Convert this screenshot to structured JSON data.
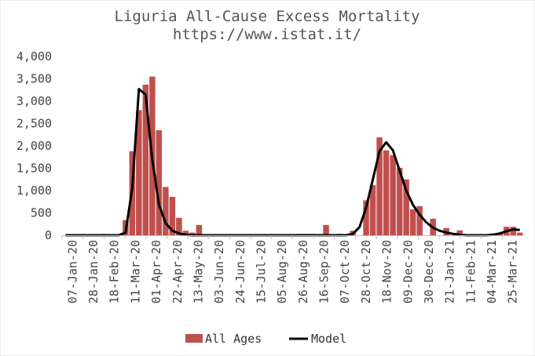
{
  "chart_data": {
    "type": "bar",
    "title": "Liguria All-Cause Excess Mortality",
    "subtitle": "https://www.istat.it/",
    "xlabel": "",
    "ylabel": "",
    "ylim": [
      0,
      4000
    ],
    "y_ticks": [
      "0",
      "500",
      "1,000",
      "1,500",
      "2,000",
      "2,500",
      "3,000",
      "3,500",
      "4,000"
    ],
    "x_tick_labels": [
      "07-Jan-20",
      "28-Jan-20",
      "18-Feb-20",
      "11-Mar-20",
      "01-Apr-20",
      "22-Apr-20",
      "13-May-20",
      "03-Jun-20",
      "24-Jun-20",
      "15-Jul-20",
      "05-Aug-20",
      "26-Aug-20",
      "16-Sep-20",
      "07-Oct-20",
      "28-Oct-20",
      "18-Nov-20",
      "09-Dec-20",
      "30-Dec-20",
      "21-Jan-21",
      "11-Feb-21",
      "04-Mar-21",
      "25-Mar-21"
    ],
    "series": [
      {
        "name": "All Ages",
        "type": "bar",
        "color": "#c0504d",
        "values": [
          0,
          0,
          0,
          15,
          15,
          15,
          15,
          0,
          0,
          340,
          1880,
          2800,
          3370,
          3550,
          2350,
          1080,
          860,
          390,
          100,
          60,
          230,
          0,
          0,
          0,
          0,
          0,
          0,
          0,
          0,
          0,
          0,
          0,
          0,
          0,
          0,
          30,
          30,
          30,
          0,
          230,
          0,
          30,
          0,
          100,
          0,
          780,
          1120,
          2190,
          1900,
          1790,
          1510,
          1250,
          580,
          650,
          0,
          370,
          0,
          160,
          0,
          110,
          0,
          0,
          0,
          0,
          40,
          50,
          190,
          190,
          60
        ]
      },
      {
        "name": "Model",
        "type": "line",
        "color": "#000000",
        "values": [
          0,
          0,
          0,
          0,
          0,
          0,
          0,
          0,
          0,
          60,
          1050,
          3270,
          3150,
          1700,
          680,
          270,
          100,
          40,
          10,
          0,
          0,
          0,
          0,
          0,
          0,
          0,
          0,
          0,
          0,
          0,
          0,
          0,
          0,
          0,
          0,
          0,
          0,
          0,
          0,
          0,
          0,
          0,
          0,
          30,
          180,
          620,
          1250,
          1880,
          2080,
          1900,
          1450,
          1000,
          680,
          460,
          290,
          170,
          100,
          60,
          30,
          10,
          0,
          0,
          0,
          0,
          10,
          40,
          90,
          130,
          120
        ]
      }
    ],
    "legend": [
      "All Ages",
      "Model"
    ],
    "legend_position": "bottom"
  }
}
